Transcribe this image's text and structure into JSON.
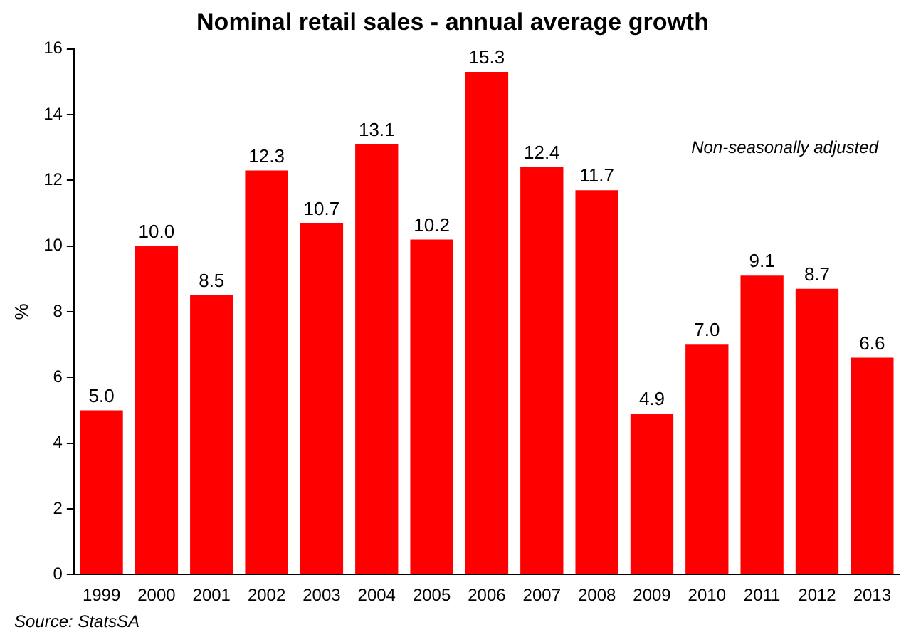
{
  "chart_data": {
    "type": "bar",
    "title": "Nominal retail sales - annual average growth",
    "ylabel": "%",
    "categories": [
      "1999",
      "2000",
      "2001",
      "2002",
      "2003",
      "2004",
      "2005",
      "2006",
      "2007",
      "2008",
      "2009",
      "2010",
      "2011",
      "2012",
      "2013"
    ],
    "values": [
      5.0,
      10.0,
      8.5,
      12.3,
      10.7,
      13.1,
      10.2,
      15.3,
      12.4,
      11.7,
      4.9,
      7.0,
      9.1,
      8.7,
      6.6
    ],
    "value_labels": [
      "5.0",
      "10.0",
      "8.5",
      "12.3",
      "10.7",
      "13.1",
      "10.2",
      "15.3",
      "12.4",
      "11.7",
      "4.9",
      "7.0",
      "9.1",
      "8.7",
      "6.6"
    ],
    "color": "#ff0000",
    "ylim": [
      0,
      16
    ],
    "yticks": [
      0,
      2,
      4,
      6,
      8,
      10,
      12,
      14,
      16
    ],
    "grid": false,
    "legend": false,
    "annotations": [
      "Non-seasonally adjusted",
      "Source: StatsSA"
    ]
  }
}
